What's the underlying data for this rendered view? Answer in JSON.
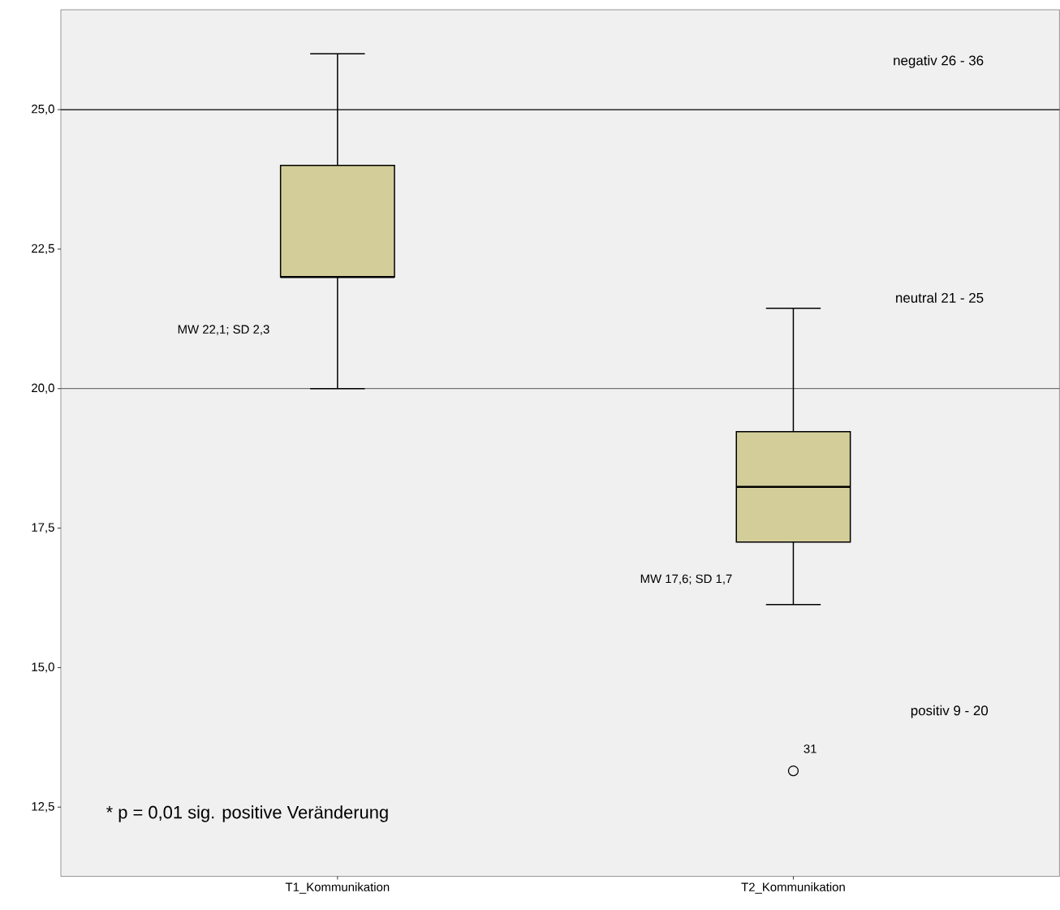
{
  "chart_data": {
    "type": "box",
    "categories": [
      "T1_Kommunikation",
      "T2_Kommunikation"
    ],
    "boxes": [
      {
        "low": 20,
        "q1": 22,
        "median": 22,
        "q3": 24,
        "high": 26
      },
      {
        "low": 16.13,
        "q1": 17.25,
        "median": 18.24,
        "q3": 19.23,
        "high": 21.44,
        "outliers": [
          13.15
        ]
      }
    ],
    "color": "#d3ce99",
    "ylim": [
      11.26,
      26.79
    ],
    "yticks": [
      {
        "value": 12.5,
        "label": "12,5"
      },
      {
        "value": 15,
        "label": "15,0"
      },
      {
        "value": 17.5,
        "label": "17,5"
      },
      {
        "value": 20,
        "label": "20,0"
      },
      {
        "value": 22.5,
        "label": "22,5"
      },
      {
        "value": 25,
        "label": "25,0"
      }
    ],
    "ref_lines": [
      {
        "axis": "y",
        "value": 25,
        "color": "#000000"
      },
      {
        "axis": "y",
        "value": 20,
        "color": "#707070"
      }
    ],
    "annotations": [
      "negativ 26 - 36",
      "neutral 21 - 25",
      "positiv 9 - 20",
      "MW 22,1; SD 2,3",
      "MW 17,6; SD 1,7",
      "31",
      "* p = 0,01 sig. positive Veränderung"
    ],
    "ylabel": null
  }
}
